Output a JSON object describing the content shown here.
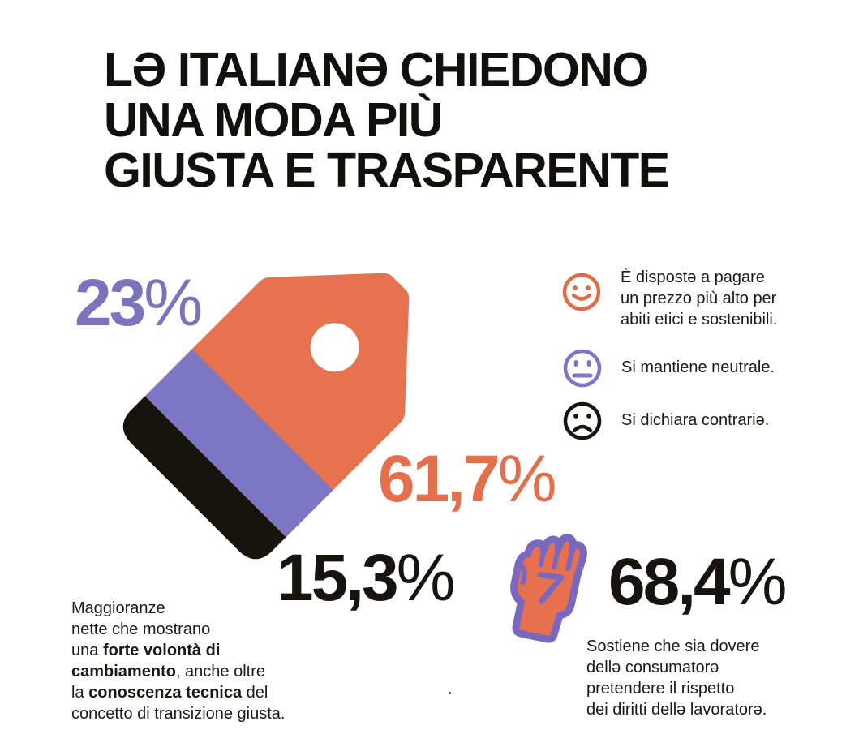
{
  "title": {
    "lines": [
      "LƏ ITALIANƏ CHIEDONO",
      "UNA MODA PIÙ",
      "GIUSTA E TRASPARENTE"
    ]
  },
  "percentages": {
    "neutral": {
      "digits": "23",
      "sign": "%",
      "display": "23%"
    },
    "willing": {
      "digits": "61,7",
      "sign": "%",
      "display": "61,7%"
    },
    "contrary": {
      "digits": "15,3",
      "sign": "%",
      "display": "15,3%"
    },
    "workers_rights": {
      "digits": "68,4",
      "sign": "%",
      "display": "68,4%"
    }
  },
  "legend": {
    "items": [
      {
        "icon": "happy-face-icon",
        "color": "#e06a4a",
        "lines": [
          "È dispostə a pagare",
          "un prezzo più alto per",
          "abiti etici e sostenibili."
        ]
      },
      {
        "icon": "neutral-face-icon",
        "color": "#7d76c7",
        "lines": [
          "Si mantiene neutrale."
        ]
      },
      {
        "icon": "sad-face-icon",
        "color": "#17130e",
        "lines": [
          "Si dichiara contrariə."
        ]
      }
    ]
  },
  "left_note": {
    "lines": [
      [
        {
          "t": "Maggioranze"
        }
      ],
      [
        {
          "t": "nette che mostrano"
        }
      ],
      [
        {
          "t": "una "
        },
        {
          "t": "forte volontà di",
          "b": true
        }
      ],
      [
        {
          "t": "cambiamento",
          "b": true
        },
        {
          "t": ", anche oltre"
        }
      ],
      [
        {
          "t": "la "
        },
        {
          "t": "conoscenza tecnica",
          "b": true
        },
        {
          "t": " del"
        }
      ],
      [
        {
          "t": "concetto di transizione giusta."
        }
      ]
    ]
  },
  "stat_note": {
    "lines": [
      "Sostiene che sia dovere",
      "dellə consumatorə",
      "pretendere il rispetto",
      "dei diritti dellə lavoratorə."
    ]
  },
  "colors": {
    "orange": "#e7724f",
    "purple": "#7d76c3",
    "black": "#17130e",
    "fist_outline": "#7a68be",
    "background": "#ffffff"
  },
  "chart_data": [
    {
      "type": "pie",
      "render_style": "striped price-tag proportions",
      "categories": [
        "È dispostə a pagare un prezzo più alto per abiti etici e sostenibili.",
        "Si mantiene neutrale.",
        "Si dichiara contrariə."
      ],
      "values": [
        61.7,
        23,
        15.3
      ],
      "labels": [
        "61,7%",
        "23%",
        "15,3%"
      ],
      "colors": [
        "#e7724f",
        "#7d76c3",
        "#17130e"
      ],
      "legend_position": "right"
    },
    {
      "type": "bar",
      "render_style": "raised-fist single stat",
      "categories": [
        "Sostiene che sia dovere dellə consumatorə pretendere il rispetto dei diritti dellə lavoratorə."
      ],
      "values": [
        68.4
      ],
      "labels": [
        "68,4%"
      ],
      "colors": [
        "#17130e"
      ]
    }
  ]
}
